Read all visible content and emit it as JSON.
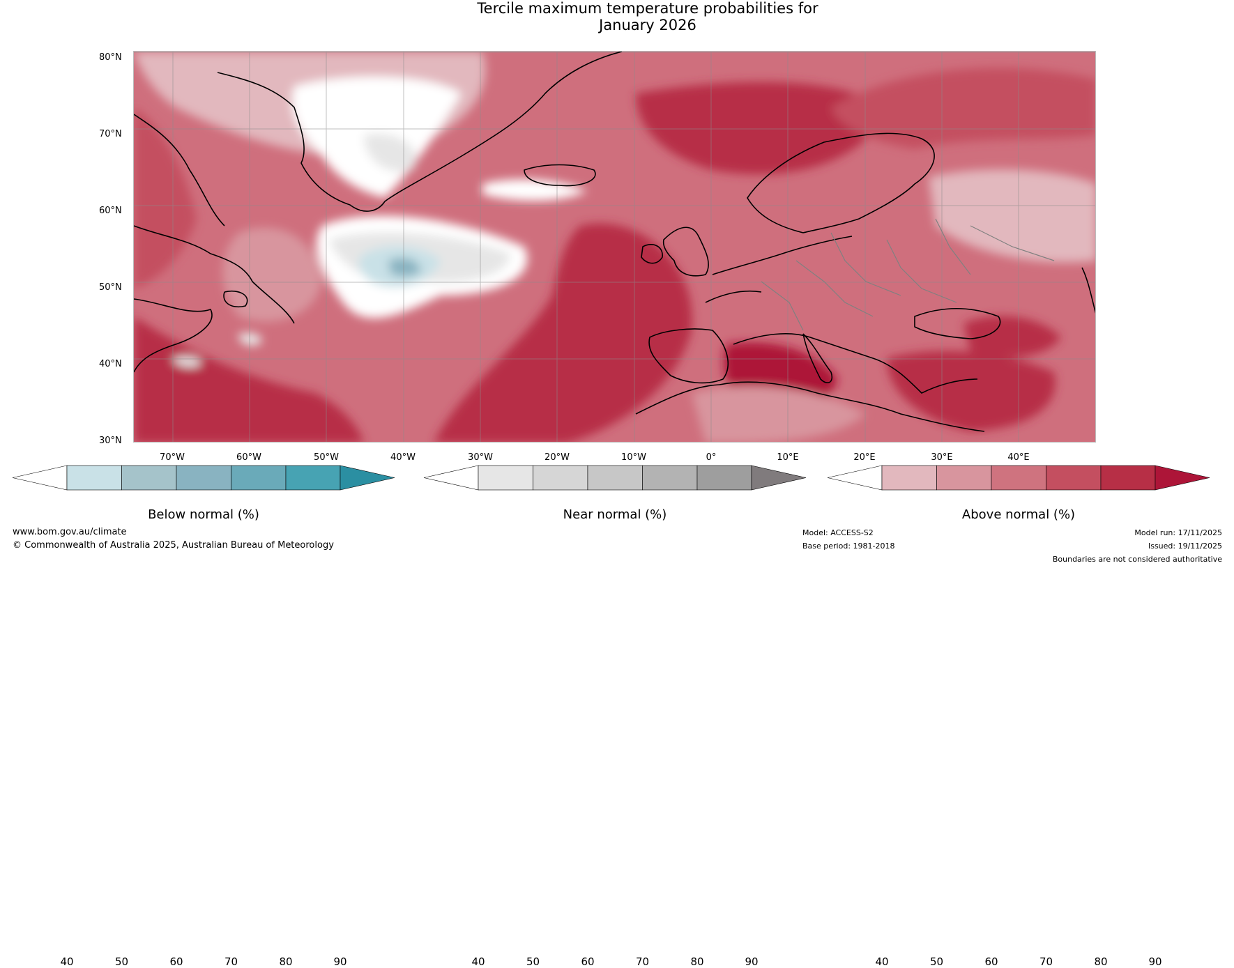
{
  "title": {
    "line1": "Tercile maximum temperature probabilities for",
    "line2": "January 2026"
  },
  "map": {
    "latitude_labels": [
      "80°N",
      "70°N",
      "60°N",
      "50°N",
      "40°N",
      "30°N"
    ],
    "longitude_labels": [
      "70°W",
      "60°W",
      "50°W",
      "40°W",
      "30°W",
      "20°W",
      "10°W",
      "0°",
      "10°E",
      "20°E",
      "30°E",
      "40°E"
    ],
    "colors": {
      "land_outline": "#000000",
      "border_outline": "#808080",
      "gridline": "#8c8c8c"
    }
  },
  "legends": [
    {
      "label": "Below normal (%)",
      "ticks": [
        "40",
        "50",
        "60",
        "70",
        "80",
        "90"
      ],
      "colors": [
        "#ffffff",
        "#c9e1e7",
        "#a5c3ca",
        "#89b3c1",
        "#6aaab9",
        "#47a3b3",
        "#2b8fa2"
      ]
    },
    {
      "label": "Near normal (%)",
      "ticks": [
        "40",
        "50",
        "60",
        "70",
        "80",
        "90"
      ],
      "colors": [
        "#ffffff",
        "#e6e6e6",
        "#d6d6d6",
        "#c7c7c7",
        "#b3b3b3",
        "#9e9e9e",
        "#807b7d"
      ]
    },
    {
      "label": "Above normal (%)",
      "ticks": [
        "40",
        "50",
        "60",
        "70",
        "80",
        "90"
      ],
      "colors": [
        "#ffffff",
        "#e2b8be",
        "#d8959e",
        "#cf737f",
        "#c44f60",
        "#b72f46",
        "#ad1538"
      ]
    }
  ],
  "footer": {
    "website": "www.bom.gov.au/climate",
    "copyright": "© Commonwealth of Australia 2025, Australian Bureau of Meteorology",
    "model": "Model: ACCESS-S2",
    "base_period": "Base period: 1981-2018",
    "model_run": "Model run: 17/11/2025",
    "issued": "Issued: 19/11/2025",
    "disclaimer": "Boundaries are not considered authoritative"
  }
}
